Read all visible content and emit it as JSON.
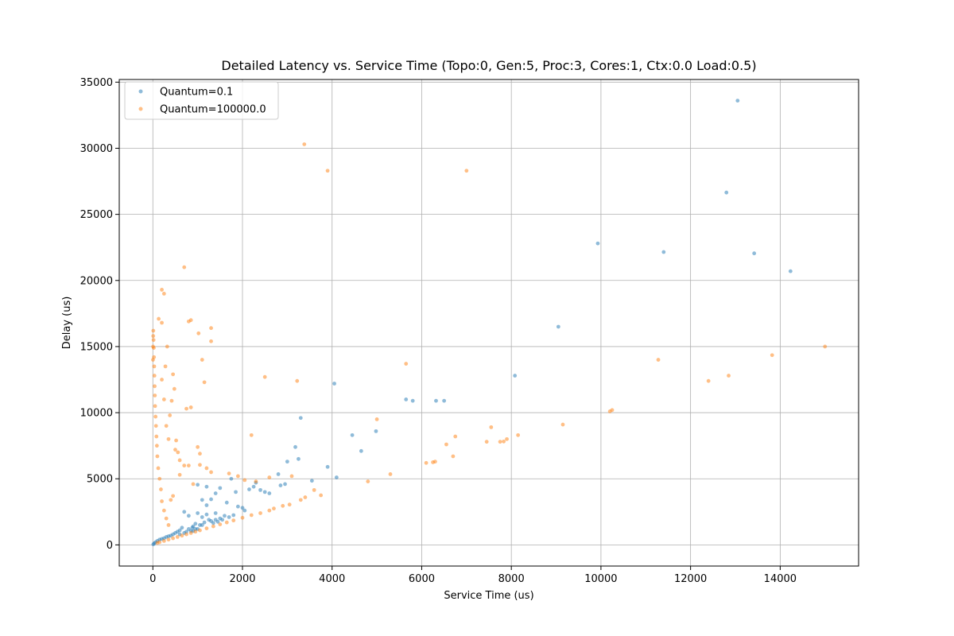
{
  "chart_data": {
    "type": "scatter",
    "title": "Detailed Latency vs. Service Time (Topo:0, Gen:5, Proc:3, Cores:1, Ctx:0.0 Load:0.5)",
    "xlabel": "Service Time (us)",
    "ylabel": "Delay (us)",
    "xlim": [
      -750,
      15750
    ],
    "ylim": [
      -1600,
      35200
    ],
    "xticks": [
      0,
      2000,
      4000,
      6000,
      8000,
      10000,
      12000,
      14000
    ],
    "yticks": [
      0,
      5000,
      10000,
      15000,
      20000,
      25000,
      30000,
      35000
    ],
    "grid": true,
    "legend_position": "top-left",
    "series": [
      {
        "name": "Quantum=0.1",
        "color": "#1f77b4",
        "points": [
          [
            13050,
            33600
          ],
          [
            12800,
            26650
          ],
          [
            9930,
            22800
          ],
          [
            11400,
            22150
          ],
          [
            13420,
            22050
          ],
          [
            14230,
            20700
          ],
          [
            9050,
            16500
          ],
          [
            8080,
            12800
          ],
          [
            4050,
            12200
          ],
          [
            5650,
            11000
          ],
          [
            5800,
            10900
          ],
          [
            6320,
            10900
          ],
          [
            6500,
            10900
          ],
          [
            3300,
            9600
          ],
          [
            4980,
            8600
          ],
          [
            4450,
            8300
          ],
          [
            3180,
            7400
          ],
          [
            4650,
            7100
          ],
          [
            3250,
            6500
          ],
          [
            3000,
            6300
          ],
          [
            3900,
            5900
          ],
          [
            4100,
            5100
          ],
          [
            2800,
            5350
          ],
          [
            3550,
            4850
          ],
          [
            2950,
            4600
          ],
          [
            2850,
            4500
          ],
          [
            2300,
            4700
          ],
          [
            2250,
            4400
          ],
          [
            2150,
            4200
          ],
          [
            2400,
            4150
          ],
          [
            2500,
            4000
          ],
          [
            2600,
            3900
          ],
          [
            1000,
            4550
          ],
          [
            1200,
            4400
          ],
          [
            1500,
            4300
          ],
          [
            1400,
            3900
          ],
          [
            1100,
            3400
          ],
          [
            1300,
            3450
          ],
          [
            1750,
            5000
          ],
          [
            1850,
            4000
          ],
          [
            1650,
            3200
          ],
          [
            1900,
            2900
          ],
          [
            2000,
            2800
          ],
          [
            2050,
            2600
          ],
          [
            1200,
            3000
          ],
          [
            700,
            2500
          ],
          [
            800,
            2200
          ],
          [
            1000,
            2400
          ],
          [
            1100,
            2100
          ],
          [
            1200,
            2300
          ],
          [
            1400,
            2400
          ],
          [
            1500,
            2000
          ],
          [
            1600,
            2200
          ],
          [
            1700,
            2100
          ],
          [
            1800,
            2250
          ],
          [
            1300,
            1800
          ],
          [
            1250,
            1900
          ],
          [
            900,
            1400
          ],
          [
            950,
            1600
          ],
          [
            1000,
            1200
          ],
          [
            1050,
            1500
          ],
          [
            600,
            1100
          ],
          [
            650,
            1300
          ],
          [
            700,
            900
          ],
          [
            750,
            1000
          ],
          [
            800,
            1200
          ],
          [
            850,
            1050
          ],
          [
            880,
            1300
          ],
          [
            500,
            900
          ],
          [
            550,
            1000
          ],
          [
            450,
            800
          ],
          [
            400,
            700
          ],
          [
            350,
            650
          ],
          [
            300,
            600
          ],
          [
            250,
            500
          ],
          [
            200,
            450
          ],
          [
            150,
            400
          ],
          [
            100,
            300
          ],
          [
            60,
            200
          ],
          [
            30,
            120
          ],
          [
            10,
            40
          ],
          [
            600,
            800
          ],
          [
            900,
            1050
          ],
          [
            1100,
            1500
          ],
          [
            1400,
            1900
          ],
          [
            950,
            1200
          ],
          [
            1150,
            1700
          ],
          [
            1350,
            1650
          ],
          [
            1450,
            1750
          ],
          [
            1550,
            1900
          ]
        ]
      },
      {
        "name": "Quantum=100000.0",
        "color": "#ff7f0e",
        "points": [
          [
            3380,
            30300
          ],
          [
            3900,
            28300
          ],
          [
            7000,
            28300
          ],
          [
            700,
            21000
          ],
          [
            200,
            19300
          ],
          [
            250,
            19000
          ],
          [
            130,
            17100
          ],
          [
            200,
            16800
          ],
          [
            800,
            16900
          ],
          [
            850,
            17000
          ],
          [
            1300,
            16400
          ],
          [
            1020,
            16000
          ],
          [
            1300,
            15400
          ],
          [
            15000,
            15000
          ],
          [
            13820,
            14350
          ],
          [
            11280,
            14000
          ],
          [
            1100,
            14000
          ],
          [
            5650,
            13700
          ],
          [
            450,
            12900
          ],
          [
            2500,
            12700
          ],
          [
            12850,
            12800
          ],
          [
            12400,
            12400
          ],
          [
            3220,
            12400
          ],
          [
            1150,
            12300
          ],
          [
            5000,
            9500
          ],
          [
            9150,
            9100
          ],
          [
            7550,
            8900
          ],
          [
            2200,
            8300
          ],
          [
            8150,
            8300
          ],
          [
            6750,
            8200
          ],
          [
            10250,
            10200
          ],
          [
            10200,
            10100
          ],
          [
            750,
            10300
          ],
          [
            850,
            10400
          ],
          [
            7900,
            8000
          ],
          [
            7750,
            7800
          ],
          [
            7830,
            7820
          ],
          [
            7450,
            7800
          ],
          [
            6550,
            7600
          ],
          [
            6700,
            6700
          ],
          [
            6300,
            6300
          ],
          [
            6250,
            6250
          ],
          [
            6100,
            6200
          ],
          [
            1000,
            7400
          ],
          [
            1050,
            6900
          ],
          [
            500,
            7200
          ],
          [
            700,
            6000
          ],
          [
            800,
            6000
          ],
          [
            1050,
            6050
          ],
          [
            1200,
            5800
          ],
          [
            1300,
            5500
          ],
          [
            2600,
            5100
          ],
          [
            3100,
            5200
          ],
          [
            1700,
            5400
          ],
          [
            1900,
            5200
          ],
          [
            4800,
            4800
          ],
          [
            5300,
            5350
          ],
          [
            3750,
            3750
          ],
          [
            3600,
            4150
          ],
          [
            3400,
            3600
          ],
          [
            3300,
            3400
          ],
          [
            3050,
            3050
          ],
          [
            2900,
            2950
          ],
          [
            2700,
            2750
          ],
          [
            2600,
            2600
          ],
          [
            2400,
            2400
          ],
          [
            2200,
            2250
          ],
          [
            2000,
            2050
          ],
          [
            1800,
            1850
          ],
          [
            1650,
            1700
          ],
          [
            1500,
            1550
          ],
          [
            1350,
            1400
          ],
          [
            1200,
            1250
          ],
          [
            1050,
            1100
          ],
          [
            950,
            1000
          ],
          [
            850,
            900
          ],
          [
            750,
            800
          ],
          [
            650,
            700
          ],
          [
            550,
            600
          ],
          [
            450,
            500
          ],
          [
            350,
            400
          ],
          [
            250,
            300
          ],
          [
            150,
            200
          ],
          [
            100,
            150
          ],
          [
            2300,
            4800
          ],
          [
            2050,
            4900
          ],
          [
            600,
            5300
          ],
          [
            900,
            4600
          ],
          [
            400,
            3400
          ],
          [
            450,
            3700
          ],
          [
            350,
            1500
          ],
          [
            300,
            2000
          ],
          [
            250,
            2600
          ],
          [
            200,
            3300
          ],
          [
            180,
            4200
          ],
          [
            150,
            5000
          ],
          [
            120,
            5800
          ],
          [
            100,
            6700
          ],
          [
            90,
            7500
          ],
          [
            80,
            8200
          ],
          [
            70,
            9000
          ],
          [
            60,
            9700
          ],
          [
            50,
            10500
          ],
          [
            45,
            11300
          ],
          [
            40,
            12000
          ],
          [
            35,
            12800
          ],
          [
            30,
            13500
          ],
          [
            25,
            14200
          ],
          [
            20,
            14900
          ],
          [
            15,
            15500
          ],
          [
            10,
            16200
          ],
          [
            8,
            15800
          ],
          [
            5,
            15000
          ],
          [
            3,
            14000
          ],
          [
            300,
            9000
          ],
          [
            350,
            8000
          ],
          [
            250,
            11000
          ],
          [
            200,
            12500
          ],
          [
            280,
            13500
          ],
          [
            320,
            15000
          ],
          [
            380,
            9800
          ],
          [
            420,
            10900
          ],
          [
            480,
            11800
          ],
          [
            520,
            7900
          ],
          [
            560,
            7000
          ],
          [
            600,
            6400
          ]
        ]
      }
    ]
  }
}
